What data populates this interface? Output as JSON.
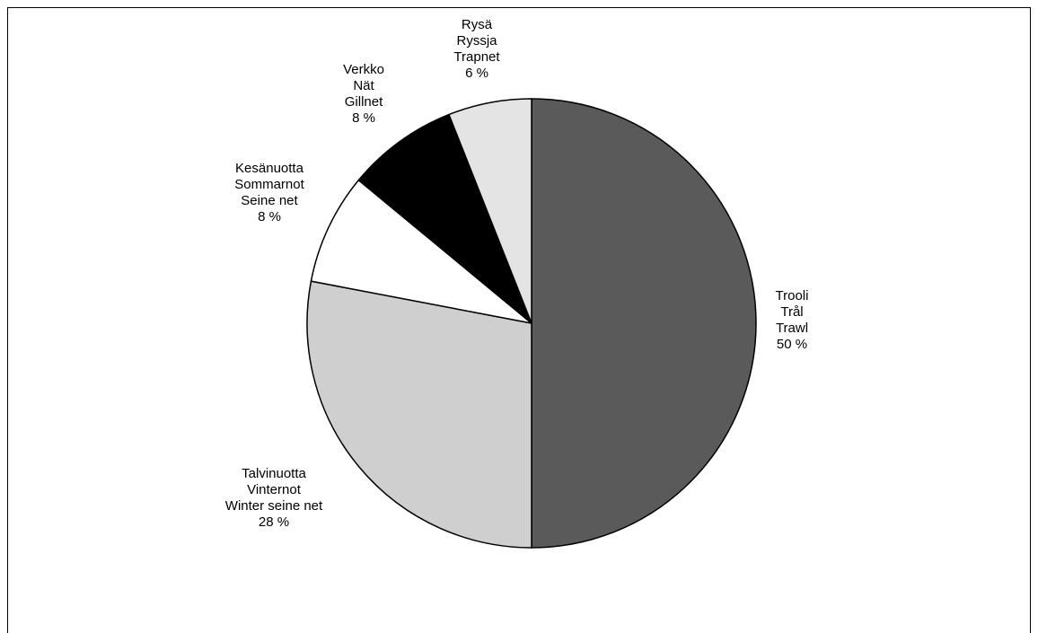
{
  "chart_data": {
    "type": "pie",
    "categories": [
      [
        "Trooli",
        "Trål",
        "Trawl"
      ],
      [
        "Talvinuotta",
        "Vinternot",
        "Winter seine net"
      ],
      [
        "Kesänuotta",
        "Sommarnot",
        "Seine net"
      ],
      [
        "Verkko",
        "Nät",
        "Gillnet"
      ],
      [
        "Rysä",
        "Ryssja",
        "Trapnet"
      ]
    ],
    "values": [
      50,
      28,
      8,
      8,
      6
    ],
    "value_labels": [
      "50 %",
      "28 %",
      "8 %",
      "8 %",
      "6 %"
    ],
    "colors": [
      "#5a5a5a",
      "#cfcfcf",
      "#ffffff",
      "#000000",
      "#e4e4e4"
    ]
  }
}
